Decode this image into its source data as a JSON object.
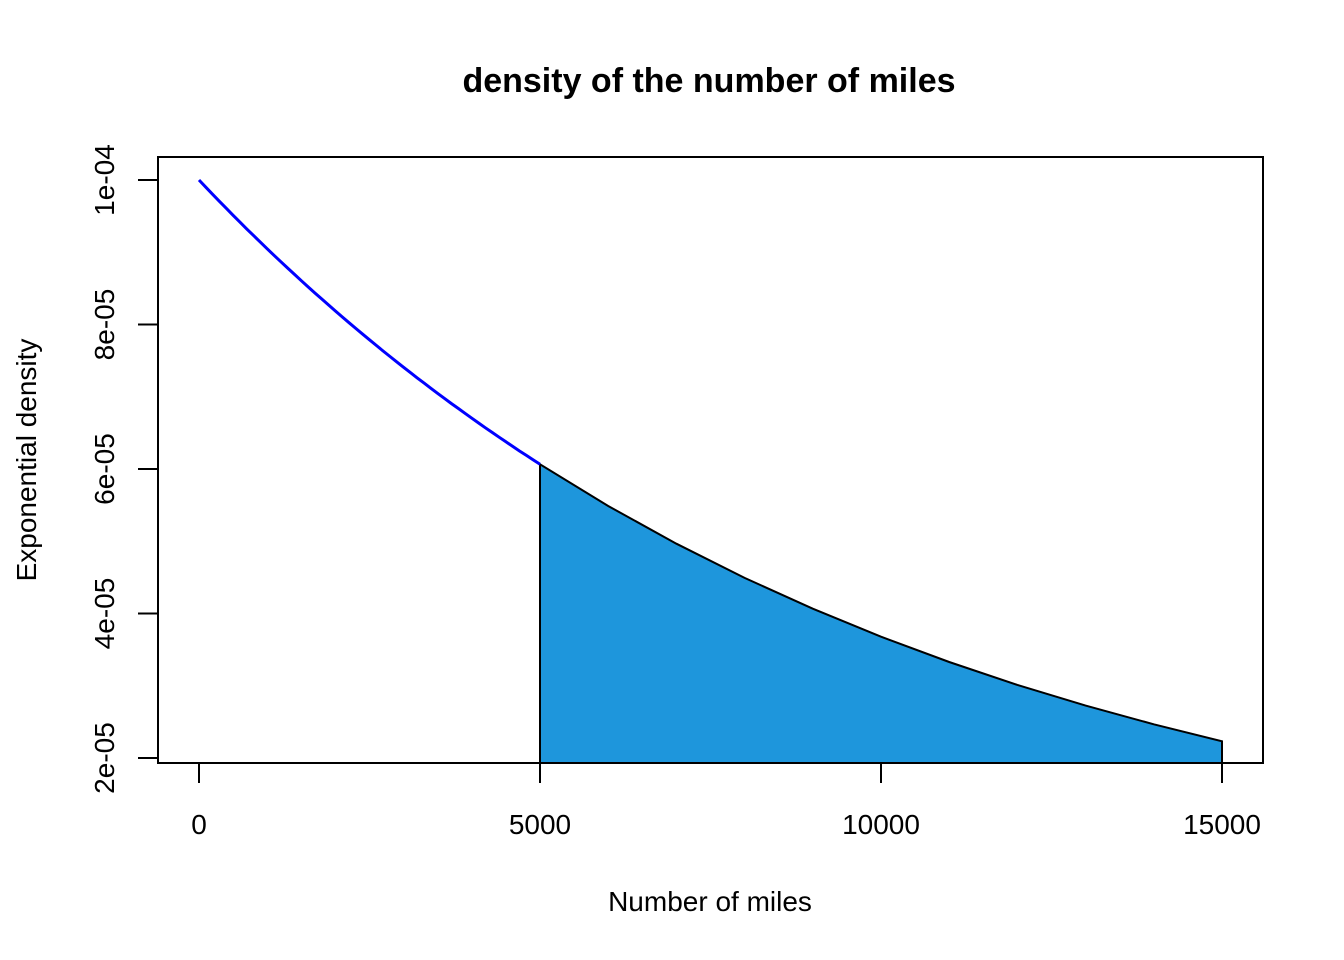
{
  "chart_data": {
    "type": "area",
    "title": "density of the number of miles",
    "xlabel": "Number of miles",
    "ylabel": "Exponential density",
    "xlim": [
      0,
      15000
    ],
    "ylim": [
      2.2e-05,
      0.0001
    ],
    "xticks": [
      {
        "value": 0,
        "label": "0"
      },
      {
        "value": 5000,
        "label": "5000"
      },
      {
        "value": 10000,
        "label": "10000"
      },
      {
        "value": 15000,
        "label": "15000"
      }
    ],
    "yticks": [
      {
        "value": 2e-05,
        "label": "2e-05"
      },
      {
        "value": 4e-05,
        "label": "4e-05"
      },
      {
        "value": 6e-05,
        "label": "6e-05"
      },
      {
        "value": 8e-05,
        "label": "8e-05"
      },
      {
        "value": 0.0001,
        "label": "1e-04"
      }
    ],
    "series": [
      {
        "type": "line",
        "color": "#0000ff",
        "x": [
          0,
          1000,
          2000,
          3000,
          4000,
          5000
        ],
        "y": [
          0.0001,
          9.048e-05,
          8.187e-05,
          7.408e-05,
          6.703e-05,
          6.065e-05
        ]
      },
      {
        "type": "area",
        "color": "#1e96dc",
        "x": [
          5000,
          6000,
          7000,
          8000,
          9000,
          10000,
          11000,
          12000,
          13000,
          14000,
          15000
        ],
        "y": [
          6.065e-05,
          5.488e-05,
          4.966e-05,
          4.493e-05,
          4.066e-05,
          3.679e-05,
          3.329e-05,
          3.012e-05,
          2.725e-05,
          2.466e-05,
          2.231e-05
        ]
      }
    ],
    "legend": "none",
    "grid": false
  }
}
